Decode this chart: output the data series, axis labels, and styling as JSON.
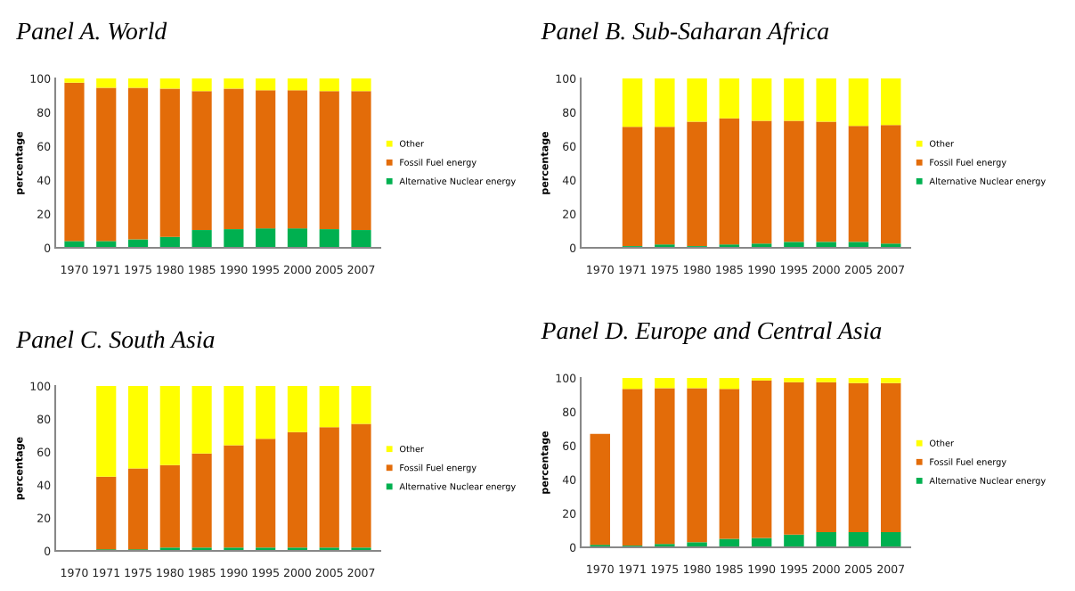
{
  "chart_data": [
    {
      "type": "bar",
      "title": "Panel A. World",
      "ylabel": "percentage",
      "stacked": true,
      "legend": "right",
      "grid": false,
      "categories": [
        "1970",
        "1971",
        "1975",
        "1980",
        "1985",
        "1990",
        "1995",
        "2000",
        "2005",
        "2007"
      ],
      "ylim": [
        0,
        100
      ],
      "yticks": [
        0,
        20,
        40,
        60,
        80,
        100
      ],
      "series": [
        {
          "name": "Alternative Nuclear energy",
          "color": "#00b050",
          "values": [
            4,
            4,
            5,
            6.5,
            10.5,
            11,
            11.5,
            11.5,
            11,
            10.5
          ]
        },
        {
          "name": "Fossil Fuel energy",
          "color": "#e36c09",
          "values": [
            93.5,
            90.5,
            89.5,
            87.5,
            82,
            83,
            81.5,
            81.5,
            81.5,
            82
          ]
        },
        {
          "name": "Other",
          "color": "#ffff00",
          "values": [
            2.5,
            5.5,
            5.5,
            6,
            7.5,
            6,
            7,
            7,
            7.5,
            7.5
          ]
        }
      ]
    },
    {
      "type": "bar",
      "title": "Panel B. Sub-Saharan Africa",
      "ylabel": "percentage",
      "stacked": true,
      "legend": "right",
      "grid": false,
      "categories": [
        "1970",
        "1971",
        "1975",
        "1980",
        "1985",
        "1990",
        "1995",
        "2000",
        "2005",
        "2007"
      ],
      "ylim": [
        0,
        100
      ],
      "yticks": [
        0,
        20,
        40,
        60,
        80,
        100
      ],
      "series": [
        {
          "name": "Alternative Nuclear energy",
          "color": "#00b050",
          "values": [
            null,
            1,
            2,
            1,
            2,
            2.5,
            3.5,
            3.5,
            3.5,
            2.5
          ]
        },
        {
          "name": "Fossil Fuel energy",
          "color": "#e36c09",
          "values": [
            null,
            70.5,
            69.5,
            73.5,
            74.5,
            72.5,
            71.5,
            71,
            68.5,
            70
          ]
        },
        {
          "name": "Other",
          "color": "#ffff00",
          "values": [
            null,
            28.5,
            28.5,
            25.5,
            23.5,
            25,
            25,
            25.5,
            28,
            27.5
          ]
        }
      ]
    },
    {
      "type": "bar",
      "title": "Panel C. South Asia",
      "ylabel": "percentage",
      "stacked": true,
      "legend": "right",
      "grid": false,
      "categories": [
        "1970",
        "1971",
        "1975",
        "1980",
        "1985",
        "1990",
        "1995",
        "2000",
        "2005",
        "2007"
      ],
      "ylim": [
        0,
        100
      ],
      "yticks": [
        0,
        20,
        40,
        60,
        80,
        100
      ],
      "series": [
        {
          "name": "Alternative Nuclear energy",
          "color": "#00b050",
          "values": [
            null,
            1,
            1,
            2,
            2,
            2,
            2,
            2,
            2,
            2
          ]
        },
        {
          "name": "Fossil Fuel energy",
          "color": "#e36c09",
          "values": [
            null,
            44,
            49,
            50,
            57,
            62,
            66,
            70,
            73,
            75
          ]
        },
        {
          "name": "Other",
          "color": "#ffff00",
          "values": [
            null,
            55,
            50,
            48,
            41,
            36,
            32,
            28,
            25,
            23
          ]
        }
      ]
    },
    {
      "type": "bar",
      "title": "Panel D. Europe and Central Asia",
      "ylabel": "percentage",
      "stacked": true,
      "legend": "right",
      "grid": false,
      "categories": [
        "1970",
        "1971",
        "1975",
        "1980",
        "1985",
        "1990",
        "1995",
        "2000",
        "2005",
        "2007"
      ],
      "ylim": [
        0,
        100
      ],
      "yticks": [
        0,
        20,
        40,
        60,
        80,
        100
      ],
      "series": [
        {
          "name": "Alternative Nuclear energy",
          "color": "#00b050",
          "values": [
            1.5,
            1,
            2,
            3,
            5,
            5.5,
            7.5,
            9,
            9,
            9
          ]
        },
        {
          "name": "Fossil Fuel energy",
          "color": "#e36c09",
          "values": [
            65.5,
            92.5,
            92,
            91,
            88.5,
            93,
            90,
            88.5,
            88,
            88
          ]
        },
        {
          "name": "Other",
          "color": "#ffff00",
          "values": [
            null,
            6.5,
            6,
            6,
            6.5,
            1.5,
            2.5,
            2.5,
            3,
            3
          ]
        }
      ]
    }
  ]
}
